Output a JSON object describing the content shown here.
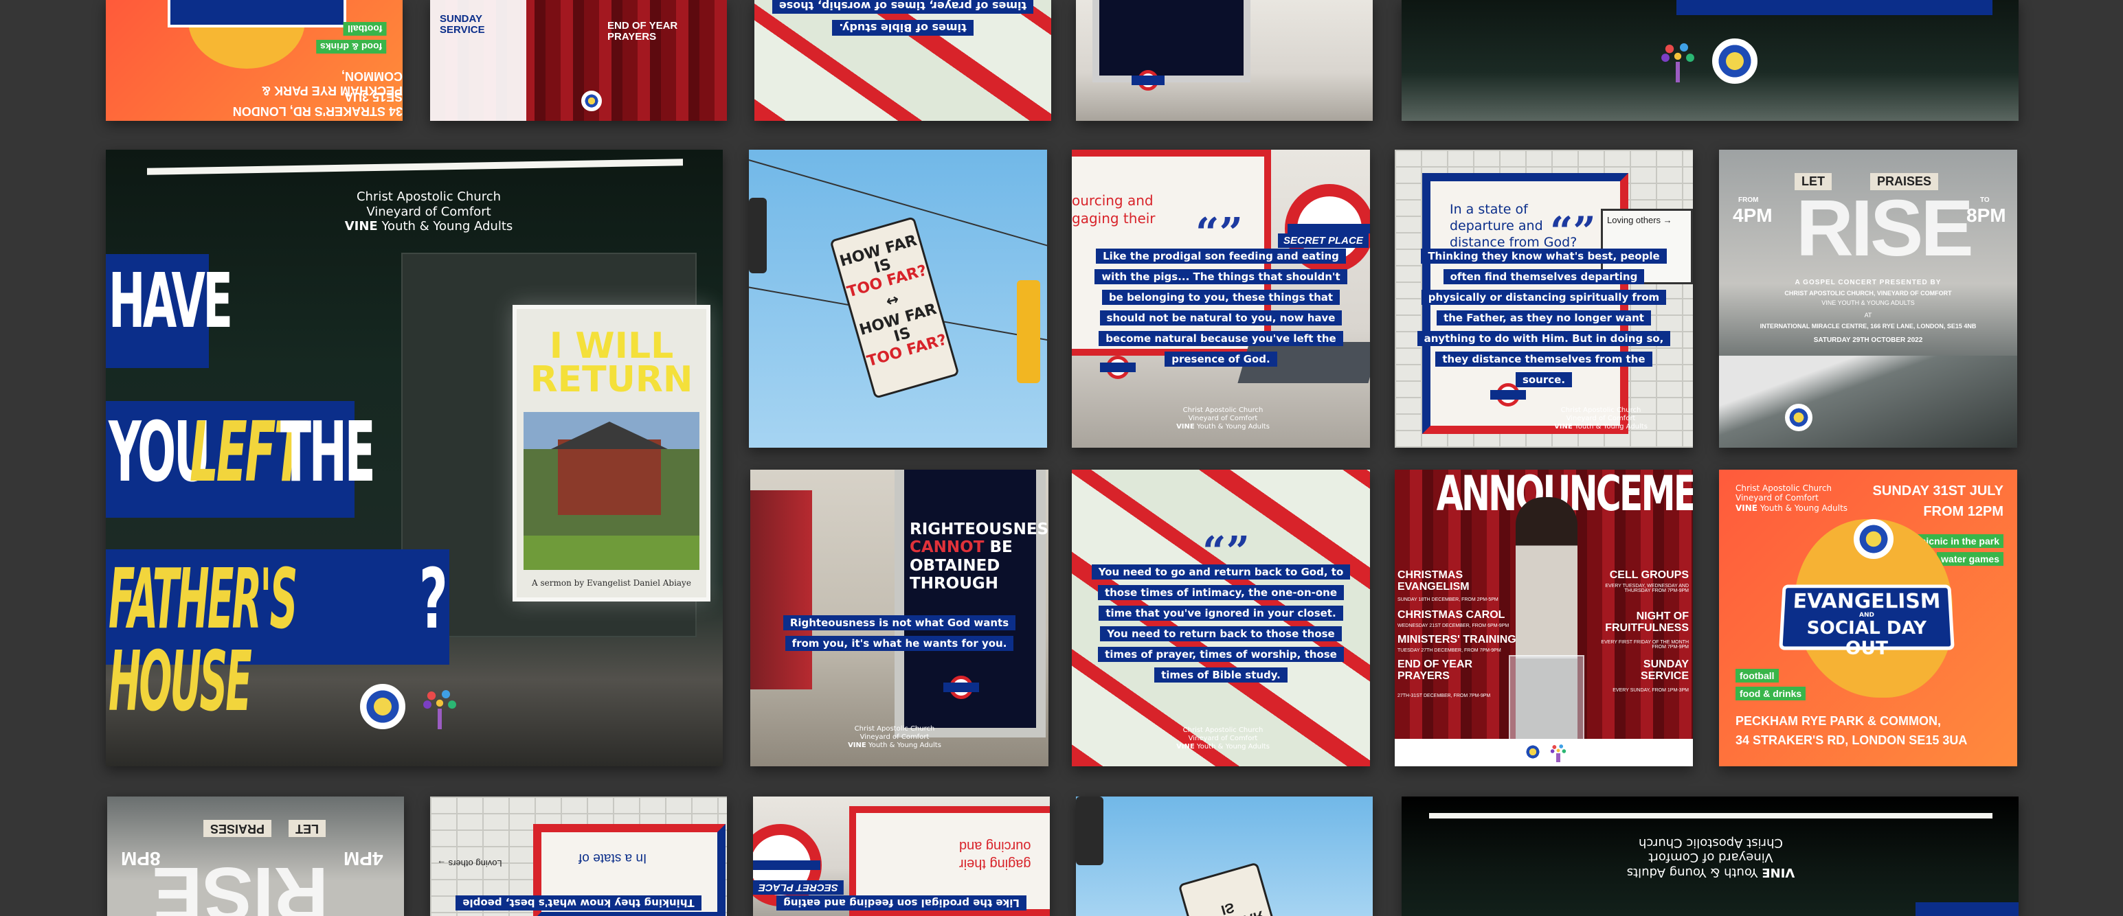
{
  "church": {
    "name": "Christ Apostolic Church",
    "branch": "Vineyard of Comfort",
    "vine": "VINE",
    "group": "Youth & Young Adults"
  },
  "main_poster": {
    "line1": "HAVE",
    "line2a": "YOU",
    "line2b": "LEFT",
    "line2c": "THE",
    "line3a": "FATHER'S HOUSE",
    "line3b": "?",
    "book_title": "I WILL RETURN",
    "book_author": "A sermon by Evangelist Daniel Abiaye"
  },
  "sign": {
    "line1": "HOW FAR IS",
    "line2": "TOO FAR?",
    "line3": "HOW FAR IS",
    "line4": "TOO FAR?"
  },
  "prodigal": {
    "heading_a": "ourcing and",
    "heading_b": "gaging their",
    "board": "SECRET PLACE",
    "lines": [
      "Like the prodigal son feeding and eating",
      "with the pigs... The things that shouldn't",
      "be belonging to you, these things that",
      "should not be natural to you, now have",
      "become natural because you've left the",
      "presence of God."
    ]
  },
  "thinking": {
    "heading": [
      "In a state of",
      "departure and",
      "distance from God?"
    ],
    "side": "Loving others →",
    "lines": [
      "Thinking they know what's best, people",
      "often find themselves departing",
      "physically or distancing spiritually from",
      "the Father, as they no longer want",
      "anything to do with Him. But in doing so,",
      "they distance themselves from the",
      "source."
    ]
  },
  "rise": {
    "let": "LET",
    "praises": "PRAISES",
    "from": "FROM",
    "to": "TO",
    "start": "4PM",
    "end": "8PM",
    "title": "RISE",
    "subtitle": "A GOSPEL CONCERT PRESENTED BY",
    "presenter": "CHRIST APOSTOLIC CHURCH, VINEYARD OF COMFORT",
    "presenter2": "VINE YOUTH & YOUNG ADULTS",
    "at": "AT",
    "venue": "INTERNATIONAL MIRACLE CENTRE, 166 RYE LANE, LONDON, SE15 4NB",
    "date": "SATURDAY 29TH OCTOBER 2022"
  },
  "righteousness": {
    "poster": [
      "RIGHTEOUSNESS",
      "CANNOT",
      "BE",
      "OBTAINED",
      "THROUGH"
    ],
    "lines": [
      "Righteousness is not what God wants",
      "from you, it's what he wants for you."
    ]
  },
  "return_tile": {
    "lines": [
      "You need to go and return back to God, to",
      "those times of intimacy, the one-on-one",
      "time that you've ignored in your closet.",
      "You need to return back to those those",
      "times of prayer, times of worship, those",
      "times of Bible study."
    ]
  },
  "announcements": {
    "title": "ANNOUNCEMENTS",
    "items_left": [
      {
        "title": "CHRISTMAS EVANGELISM",
        "detail": "SUNDAY 18TH DECEMBER, FROM 2PM-5PM"
      },
      {
        "title": "CHRISTMAS CAROL",
        "detail": "WEDNESDAY 21ST DECEMBER, FROM 6PM-9PM"
      },
      {
        "title": "MINISTERS' TRAINING",
        "detail": "TUESDAY 27TH DECEMBER, FROM 7PM-9PM"
      },
      {
        "title": "END OF YEAR PRAYERS",
        "detail": "27TH-31ST DECEMBER, FROM 7PM-9PM"
      }
    ],
    "items_right": [
      {
        "title": "CELL GROUPS",
        "detail": "EVERY TUESDAY, WEDNESDAY AND THURSDAY FROM 7PM-9PM"
      },
      {
        "title": "NIGHT OF FRUITFULNESS",
        "detail": "EVERY FIRST FRIDAY OF THE MONTH FROM 7PM-9PM"
      },
      {
        "title": "SUNDAY SERVICE",
        "detail": "EVERY SUNDAY, FROM 1PM-3PM"
      }
    ]
  },
  "evangelism": {
    "date": "SUNDAY 31ST JULY",
    "time": "FROM 12PM",
    "tags_right": [
      "picnic in the park",
      "water games"
    ],
    "tags_left": [
      "football",
      "food & drinks"
    ],
    "title1": "EVANGELISM",
    "and": "AND",
    "title2": "SOCIAL DAY OUT",
    "address1": "PECKHAM RYE PARK & COMMON,",
    "address2": "34 STRAKER'S RD, LONDON SE15 3UA"
  },
  "top_row": {
    "tile1_tags": [
      "football",
      "food & drinks"
    ],
    "tile1_address": [
      "PECKHAM RYE PARK & COMMON,",
      "34 STRAKER'S RD, LONDON SE15 3UA"
    ],
    "tile2_items": [
      "SUNDAY SERVICE",
      "END OF YEAR PRAYERS"
    ],
    "tile3_lines": [
      "times of prayer, times of worship, those",
      "times of Bible study."
    ]
  },
  "colors": {
    "background": "#363636",
    "navy": "#0b2e8a",
    "yellow": "#f2d53c",
    "red": "#d8232a",
    "orange": "#ff6a2c"
  }
}
